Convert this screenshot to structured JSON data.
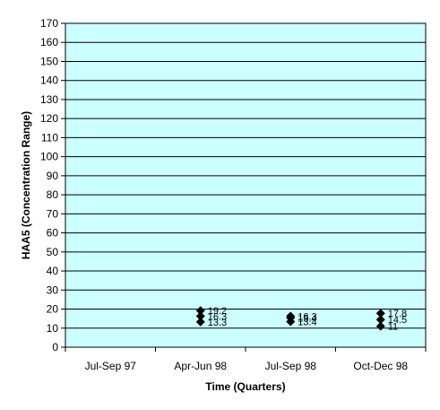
{
  "chart_data": {
    "type": "scatter",
    "xlabel": "Time (Quarters)",
    "ylabel": "HAA5 (Concentration Range)",
    "ylim": [
      0,
      170
    ],
    "ytick_step": 10,
    "categories": [
      "Jul-Sep 97",
      "Apr-Jun 98",
      "Jul-Sep 98",
      "Oct-Dec 98"
    ],
    "grid": true,
    "colors": {
      "plot_background": "#ccffff",
      "gridline": "#000000",
      "marker": "#000000"
    },
    "marker": "diamond",
    "points": [
      {
        "x": "Apr-Jun 98",
        "y": 19.2,
        "label": "19.2"
      },
      {
        "x": "Apr-Jun 98",
        "y": 16.3,
        "label": "16.3"
      },
      {
        "x": "Apr-Jun 98",
        "y": 13.3,
        "label": "13.3"
      },
      {
        "x": "Jul-Sep 98",
        "y": 16.3,
        "label": "16.3"
      },
      {
        "x": "Jul-Sep 98",
        "y": 15.4,
        "label": "15.4"
      },
      {
        "x": "Jul-Sep 98",
        "y": 13.4,
        "label": "13.4"
      },
      {
        "x": "Oct-Dec 98",
        "y": 17.8,
        "label": "17.8"
      },
      {
        "x": "Oct-Dec 98",
        "y": 14.5,
        "label": "14.5"
      },
      {
        "x": "Oct-Dec 98",
        "y": 11.0,
        "label": "11"
      }
    ]
  }
}
